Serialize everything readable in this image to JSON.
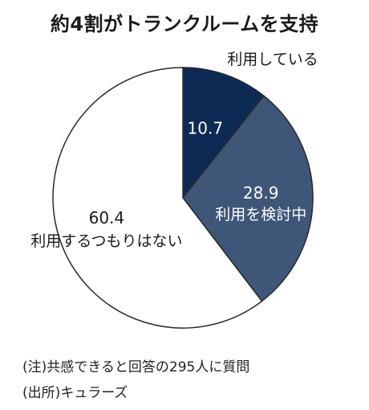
{
  "title": "約4割がトランクルームを支持",
  "chart_data": {
    "type": "pie",
    "unit": "%",
    "slices": [
      {
        "label": "利用している",
        "value": 10.7,
        "value_text": "10.7",
        "color": "#0d2a55"
      },
      {
        "label": "利用を検討中",
        "value": 28.9,
        "value_text": "28.9",
        "color": "#3e5678"
      },
      {
        "label": "利用するつもりはない",
        "value": 60.4,
        "value_text": "60.4",
        "color": "#ffffff"
      }
    ],
    "start": "12 o'clock",
    "direction": "clockwise"
  },
  "notes": {
    "note": "(注)共感できると回答の295人に質問",
    "source": "(出所)キュラーズ"
  }
}
